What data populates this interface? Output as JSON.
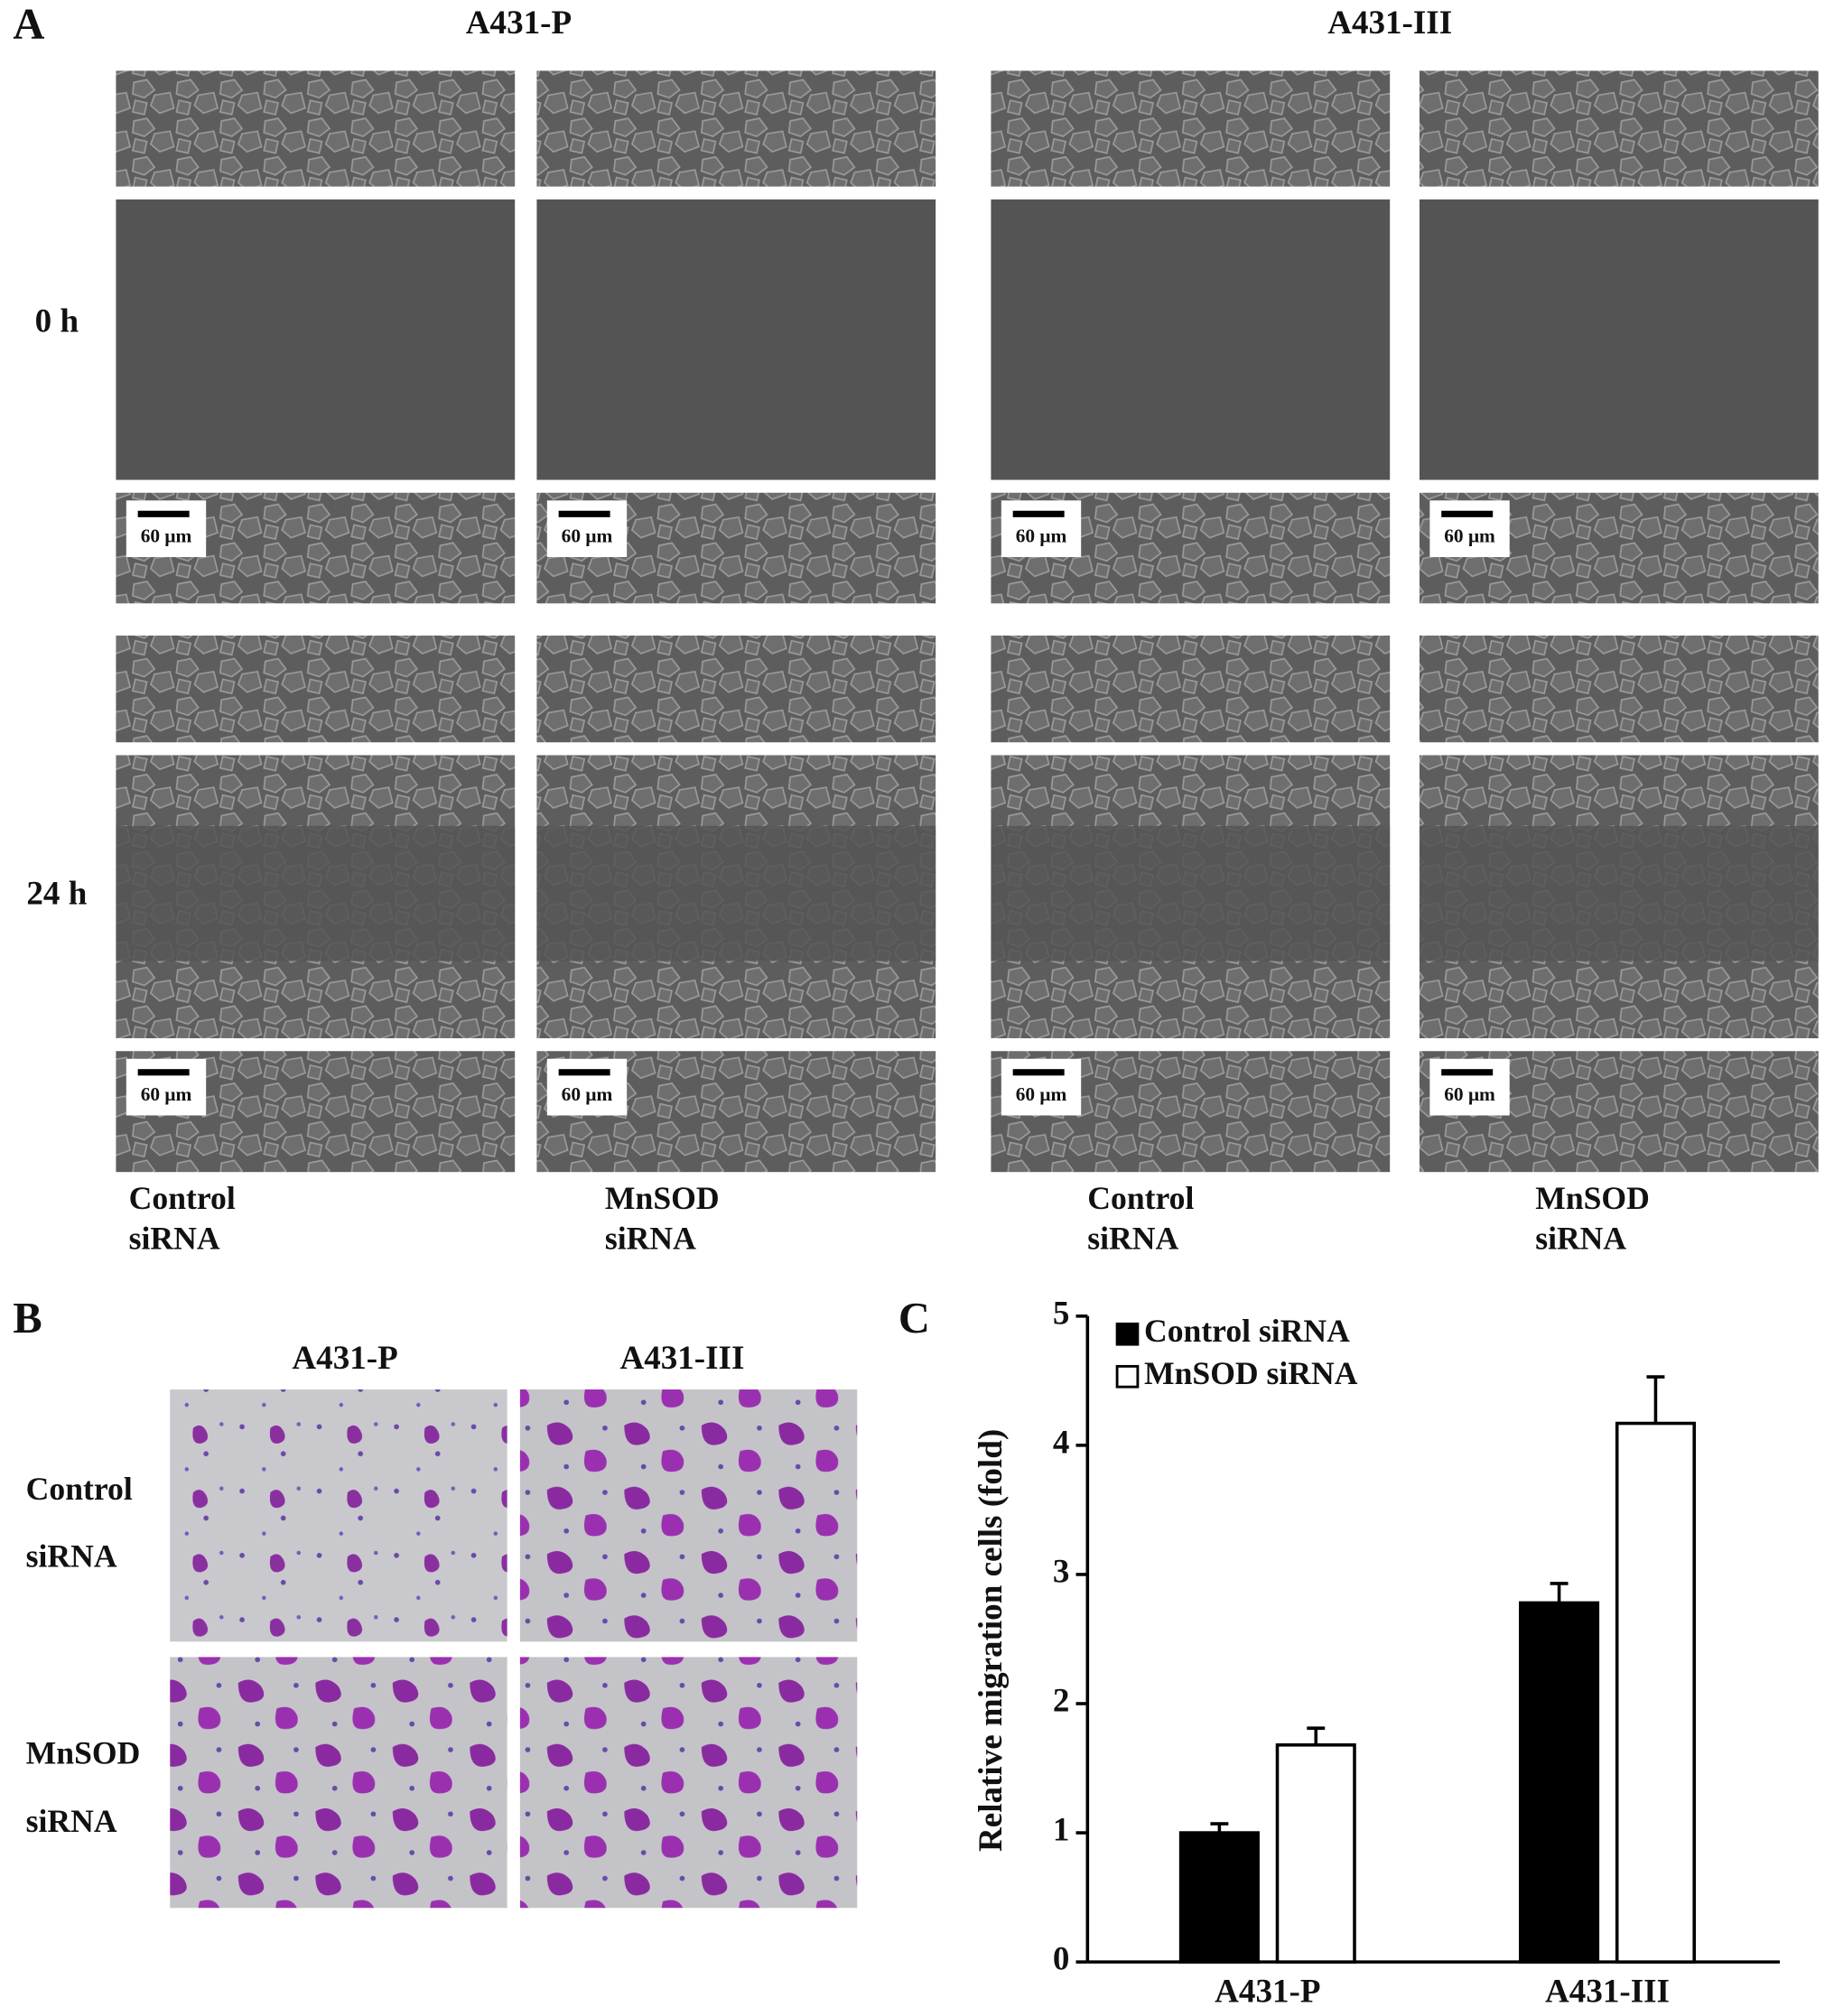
{
  "panel_a": {
    "label": "A",
    "column_headers": [
      "A431-P",
      "A431-III"
    ],
    "row_labels": [
      "0 h",
      "24 h"
    ],
    "scale_bar_label": "60 μm",
    "column_labels": [
      [
        "Control",
        "siRNA"
      ],
      [
        "MnSOD",
        "siRNA"
      ],
      [
        "Control",
        "siRNA"
      ],
      [
        "MnSOD",
        "siRNA"
      ]
    ]
  },
  "panel_b": {
    "label": "B",
    "column_headers": [
      "A431-P",
      "A431-III"
    ],
    "row_labels": [
      [
        "Control",
        "siRNA"
      ],
      [
        "MnSOD",
        "siRNA"
      ]
    ]
  },
  "chart_data": {
    "type": "bar",
    "panel_label": "C",
    "y_label": "Relative migration cells (fold)",
    "categories": [
      "A431-P",
      "A431-III"
    ],
    "series": [
      {
        "name": "Control siRNA",
        "color": "#000000",
        "values": [
          1.0,
          2.78
        ],
        "errors": [
          0.07,
          0.15
        ]
      },
      {
        "name": "MnSOD siRNA",
        "color": "#ffffff",
        "values": [
          1.68,
          4.17
        ],
        "errors": [
          0.13,
          0.36
        ]
      }
    ],
    "ylim": [
      0,
      5
    ],
    "yticks": [
      0,
      1,
      2,
      3,
      4,
      5
    ],
    "legend": "upper left"
  }
}
